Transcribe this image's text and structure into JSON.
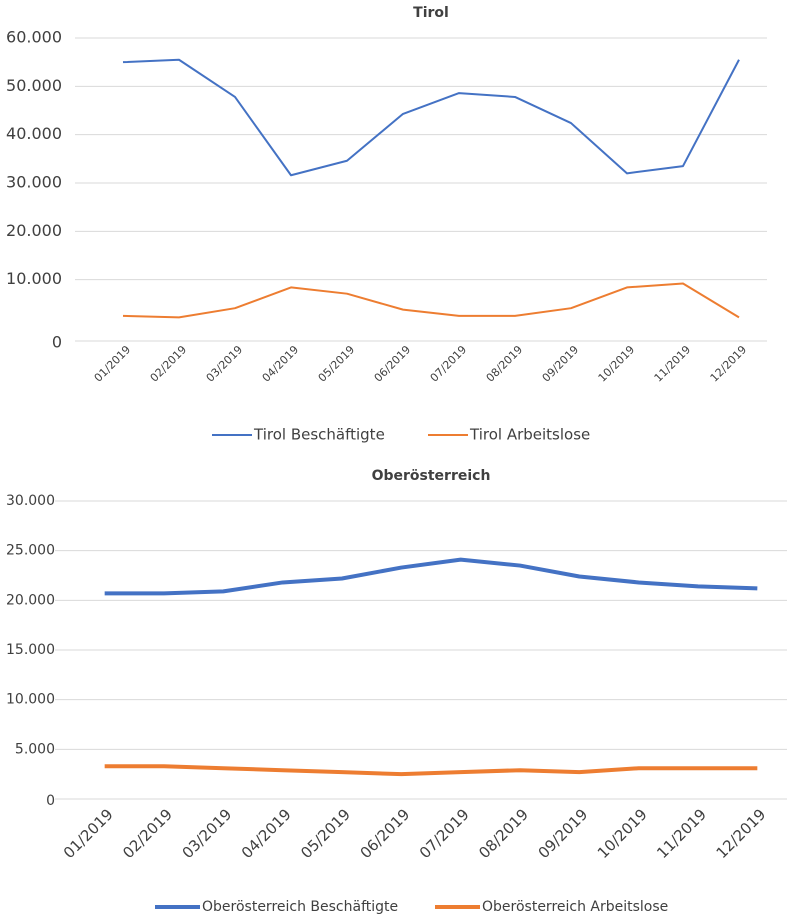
{
  "chart_data": [
    {
      "type": "line",
      "title": "Tirol",
      "categories": [
        "01/2019",
        "02/2019",
        "03/2019",
        "04/2019",
        "05/2019",
        "06/2019",
        "07/2019",
        "08/2019",
        "09/2019",
        "10/2019",
        "11/2019",
        "12/2019"
      ],
      "series": [
        {
          "name": "Tirol Beschäftigte",
          "color": "#4472c4",
          "values": [
            55000,
            55500,
            47800,
            31600,
            34600,
            44300,
            48600,
            47800,
            42400,
            32000,
            33500,
            55500
          ]
        },
        {
          "name": "Tirol Arbeitslose",
          "color": "#ed7d31",
          "values": [
            2500,
            2200,
            4100,
            8400,
            7100,
            3800,
            2500,
            2500,
            4100,
            8400,
            9200,
            2200
          ]
        }
      ],
      "ylim": [
        0,
        60000
      ],
      "yticks": [
        0,
        {
          "value": 10000,
          "label": "10.000"
        },
        {
          "value": 20000,
          "label": "20.000"
        },
        {
          "value": 30000,
          "label": "30.000"
        },
        {
          "value": 40000,
          "label": "40.000"
        },
        {
          "value": 50000,
          "label": "50.000"
        },
        {
          "value": 60000,
          "label": "60.000"
        }
      ],
      "grid": true,
      "legend": "bottom"
    },
    {
      "type": "line",
      "title": "Oberösterreich",
      "categories": [
        "01/2019",
        "02/2019",
        "03/2019",
        "04/2019",
        "05/2019",
        "06/2019",
        "07/2019",
        "08/2019",
        "09/2019",
        "10/2019",
        "11/2019",
        "12/2019"
      ],
      "series": [
        {
          "name": "Oberösterreich Beschäftigte",
          "color": "#4472c4",
          "values": [
            20700,
            20700,
            20900,
            21800,
            22200,
            23300,
            24100,
            23500,
            22400,
            21800,
            21400,
            21200
          ]
        },
        {
          "name": "Oberösterreich Arbeitslose",
          "color": "#ed7d31",
          "values": [
            3300,
            3300,
            3100,
            2900,
            2700,
            2500,
            2700,
            2900,
            2700,
            3100,
            3100,
            3100
          ]
        }
      ],
      "ylim": [
        0,
        30000
      ],
      "yticks": [
        0,
        {
          "value": 5000,
          "label": "5.000"
        },
        {
          "value": 10000,
          "label": "10.000"
        },
        {
          "value": 15000,
          "label": "15.000"
        },
        {
          "value": 20000,
          "label": "20.000"
        },
        {
          "value": 25000,
          "label": "25.000"
        },
        {
          "value": 30000,
          "label": "30.000"
        }
      ],
      "grid": true,
      "legend": "bottom"
    }
  ]
}
